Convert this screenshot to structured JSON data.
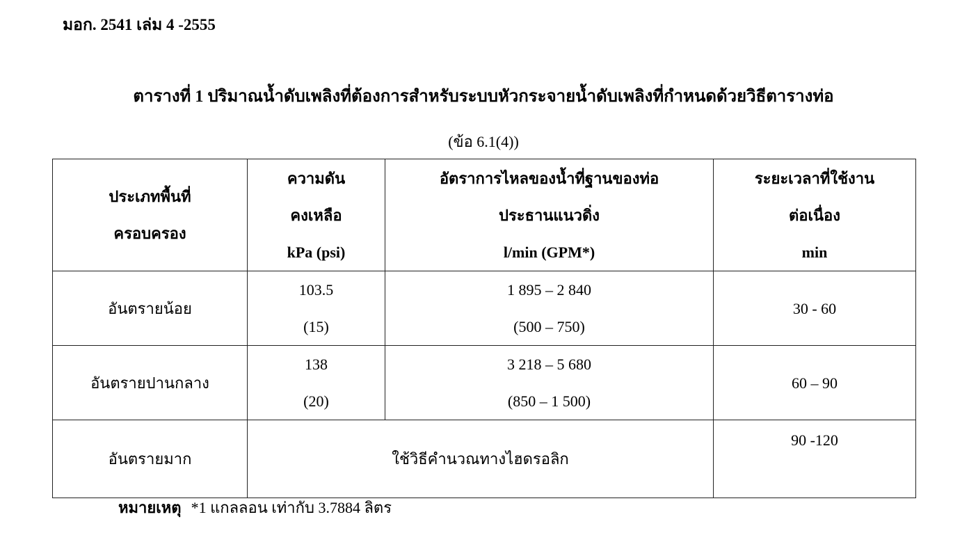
{
  "document_id": "มอก. 2541 เล่ม 4 -2555",
  "title": "ตารางที่ 1  ปริมาณน้ำดับเพลิงที่ต้องการสำหรับระบบหัวกระจายน้ำดับเพลิงที่กำหนดด้วยวิธีตารางท่อ",
  "reference": "(ข้อ 6.1(4))",
  "table": {
    "headers": [
      [
        "ประเภทพื้นที่",
        "ครอบครอง"
      ],
      [
        "ความดัน",
        "คงเหลือ",
        "kPa (psi)"
      ],
      [
        "อัตราการไหลของน้ำที่ฐานของท่อ",
        "ประธานแนวดิ่ง",
        "l/min (GPM*)"
      ],
      [
        "ระยะเวลาที่ใช้งาน",
        "ต่อเนื่อง",
        "min"
      ]
    ],
    "rows": [
      {
        "occupancy": "อันตรายน้อย",
        "pressure": [
          "103.5",
          "(15)"
        ],
        "flow": [
          "1 895 – 2 840",
          "(500 – 750)"
        ],
        "duration": "30 - 60"
      },
      {
        "occupancy": "อันตรายปานกลาง",
        "pressure": [
          "138",
          "(20)"
        ],
        "flow": [
          "3 218 – 5 680",
          "(850 – 1 500)"
        ],
        "duration": "60 – 90"
      },
      {
        "occupancy": "อันตรายมาก",
        "merged": "ใช้วิธีคำนวณทางไฮดรอลิก",
        "duration": "90 -120"
      }
    ]
  },
  "note": {
    "label": "หมายเหตุ",
    "text": "*1 แกลลอน  เท่ากับ  3.7884 ลิตร"
  }
}
